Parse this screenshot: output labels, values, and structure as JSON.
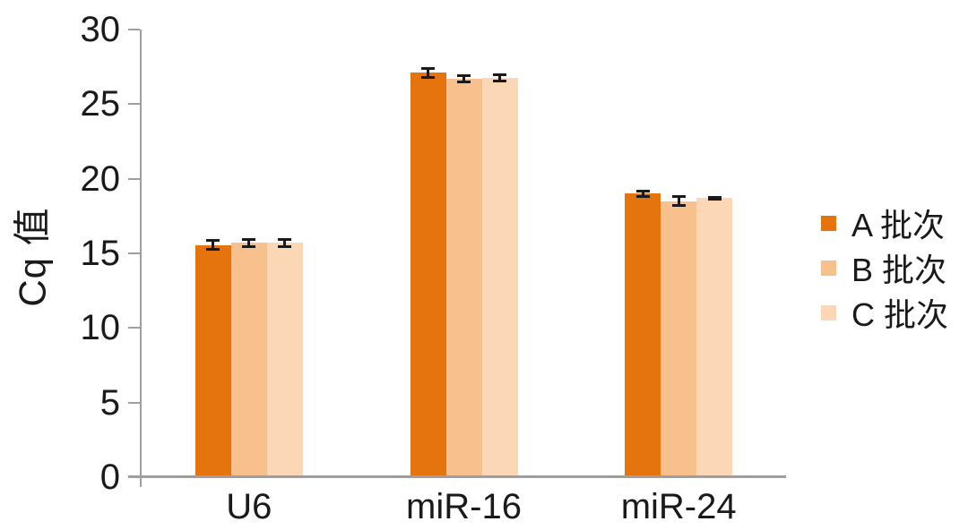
{
  "chart_data": {
    "type": "bar",
    "title": "",
    "xlabel": "",
    "ylabel": "Cq 值",
    "categories": [
      "U6",
      "miR-16",
      "miR-24"
    ],
    "series": [
      {
        "name": "A 批次",
        "color": "#e6740e",
        "values": [
          15.55,
          27.1,
          19.0
        ],
        "errors": [
          0.3,
          0.3,
          0.2
        ]
      },
      {
        "name": "B 批次",
        "color": "#f8c08d",
        "values": [
          15.7,
          26.7,
          18.5
        ],
        "errors": [
          0.25,
          0.2,
          0.3
        ]
      },
      {
        "name": "C 批次",
        "color": "#fbd7b6",
        "values": [
          15.7,
          26.75,
          18.7
        ],
        "errors": [
          0.25,
          0.2,
          0.07
        ]
      }
    ],
    "ylim": [
      0,
      30
    ],
    "yticks": [
      0,
      5,
      10,
      15,
      20,
      25,
      30
    ],
    "grid": false,
    "legend_position": "right",
    "axis_color": "#9e9e9e",
    "error_bar_color": "#1a1a1a",
    "text_color": "#1a1a1a"
  }
}
